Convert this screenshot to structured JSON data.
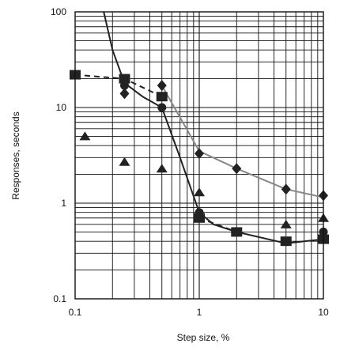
{
  "chart_data": {
    "type": "scatter",
    "x_scale": "log",
    "y_scale": "log",
    "xlim": [
      0.1,
      10
    ],
    "ylim": [
      0.1,
      100
    ],
    "grid": true,
    "xlabel": "Step size, %",
    "ylabel": "Responses, seconds",
    "x_ticks": [
      {
        "value": 0.1,
        "label": "0.1"
      },
      {
        "value": 1,
        "label": "1"
      },
      {
        "value": 10,
        "label": "10"
      }
    ],
    "y_ticks": [
      {
        "value": 0.1,
        "label": "0.1"
      },
      {
        "value": 1,
        "label": "1"
      },
      {
        "value": 10,
        "label": "10"
      },
      {
        "value": 100,
        "label": "100"
      }
    ],
    "series": [
      {
        "marker": "square",
        "color": "#222222",
        "line": "solid",
        "x": [
          0.1,
          0.25,
          0.5,
          1,
          2,
          5,
          10
        ],
        "y": [
          22,
          20,
          13,
          0.7,
          0.5,
          0.4,
          0.42
        ]
      },
      {
        "marker": "circle",
        "color": "#222222",
        "line": "solid",
        "x": [
          0.25,
          0.5,
          1,
          2,
          5,
          10
        ],
        "y": [
          17,
          10,
          0.8,
          0.5,
          0.4,
          0.5
        ]
      },
      {
        "marker": "diamond",
        "color": "#222222",
        "line": "solid",
        "line_color": "#888888",
        "x": [
          0.25,
          0.5,
          1,
          2,
          5,
          10
        ],
        "y": [
          14,
          17,
          3.3,
          2.3,
          1.4,
          1.2
        ]
      },
      {
        "marker": "triangle",
        "color": "#222222",
        "line": "none",
        "x": [
          0.12,
          0.25,
          0.5,
          1,
          5,
          10
        ],
        "y": [
          5,
          2.7,
          2.3,
          1.3,
          0.6,
          0.7
        ]
      }
    ],
    "curves": [
      {
        "style": "solid",
        "color": "#222222",
        "x": [
          0.17,
          0.2,
          0.25,
          0.35,
          0.5,
          0.7,
          1,
          1.3,
          2,
          5,
          10
        ],
        "y": [
          100,
          40,
          18,
          13,
          10,
          3,
          0.8,
          0.6,
          0.5,
          0.38,
          0.42
        ]
      },
      {
        "style": "solid",
        "color": "#888888",
        "x": [
          0.5,
          1,
          2,
          5,
          10
        ],
        "y": [
          17,
          3.5,
          2.3,
          1.4,
          1.15
        ]
      },
      {
        "style": "dashed",
        "color": "#222222",
        "x": [
          0.1,
          0.25,
          0.5
        ],
        "y": [
          22,
          20,
          13
        ]
      },
      {
        "style": "dashed",
        "color": "#222222",
        "x": [
          1,
          2
        ],
        "y": [
          0.7,
          0.5
        ]
      }
    ]
  }
}
